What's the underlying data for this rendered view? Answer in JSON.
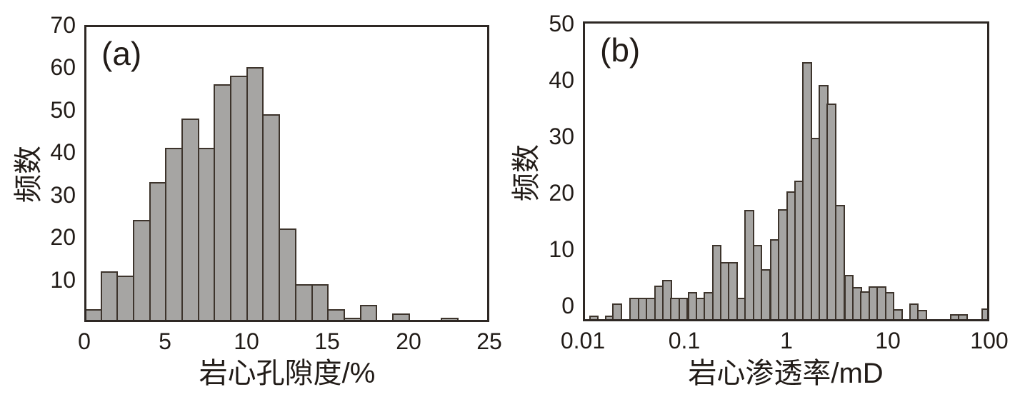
{
  "figure": {
    "background": "#ffffff"
  },
  "colors": {
    "bar_fill": "#a6a5a3",
    "bar_stroke": "#3d342c",
    "frame": "#2e2824",
    "text": "#221c18"
  },
  "chart_data": [
    {
      "id": "a",
      "type": "bar",
      "panel_label": "(a)",
      "ylabel": "频数",
      "xlabel": "岩心孔隙度/%",
      "xlim": [
        0,
        25
      ],
      "ylim": [
        0,
        70
      ],
      "xticks": [
        0,
        5,
        10,
        15,
        20,
        25
      ],
      "yticks": [
        10,
        20,
        30,
        40,
        50,
        60,
        70
      ],
      "grid": false,
      "bin_width": 1,
      "bin_left_edges": [
        0,
        1,
        2,
        3,
        4,
        5,
        6,
        7,
        8,
        9,
        10,
        11,
        12,
        13,
        14,
        15,
        16,
        17,
        18,
        19,
        20,
        21,
        22,
        23,
        24
      ],
      "values": [
        3,
        12,
        11,
        24,
        33,
        41,
        48,
        41,
        56,
        58,
        60,
        49,
        22,
        9,
        9,
        3,
        1,
        4,
        0,
        2,
        0,
        0,
        1,
        0,
        0
      ]
    },
    {
      "id": "b",
      "type": "bar",
      "panel_label": "(b)",
      "ylabel": "频数",
      "xlabel": "岩心渗透率/mD",
      "x_scale": "log10",
      "xlim_log": [
        -2,
        2
      ],
      "ylim": [
        -2.8,
        50.4
      ],
      "xtick_labels": [
        "0.01",
        "0.1",
        "1",
        "10",
        "100"
      ],
      "xtick_log_positions": [
        -2,
        -1,
        0,
        1,
        2
      ],
      "yticks": [
        0,
        10,
        20,
        30,
        40,
        50
      ],
      "grid": false,
      "bin_width_log": 0.0833,
      "baseline_note": "bars are drawn from the axis minimum (-2.8), slightly below the 0 tick",
      "bars": [
        {
          "log_x": -1.94,
          "top": -1.8
        },
        {
          "log_x": -1.78,
          "top": -1.8
        },
        {
          "log_x": -1.71,
          "top": 0.4
        },
        {
          "log_x": -1.54,
          "top": 1.4
        },
        {
          "log_x": -1.46,
          "top": 1.4
        },
        {
          "log_x": -1.38,
          "top": 1.4
        },
        {
          "log_x": -1.3,
          "top": 3.5
        },
        {
          "log_x": -1.22,
          "top": 4.6
        },
        {
          "log_x": -1.14,
          "top": 1.4
        },
        {
          "log_x": -1.06,
          "top": 1.4
        },
        {
          "log_x": -0.97,
          "top": 2.4
        },
        {
          "log_x": -0.89,
          "top": 1.4
        },
        {
          "log_x": -0.81,
          "top": 2.4
        },
        {
          "log_x": -0.73,
          "top": 10.8
        },
        {
          "log_x": -0.65,
          "top": 7.7
        },
        {
          "log_x": -0.57,
          "top": 7.7
        },
        {
          "log_x": -0.49,
          "top": 1.4
        },
        {
          "log_x": -0.41,
          "top": 17.0
        },
        {
          "log_x": -0.33,
          "top": 10.7
        },
        {
          "log_x": -0.25,
          "top": 6.5
        },
        {
          "log_x": -0.16,
          "top": 11.8
        },
        {
          "log_x": -0.08,
          "top": 17.1
        },
        {
          "log_x": 0.0,
          "top": 20.3
        },
        {
          "log_x": 0.08,
          "top": 22.2
        },
        {
          "log_x": 0.16,
          "top": 43.2
        },
        {
          "log_x": 0.24,
          "top": 29.7
        },
        {
          "log_x": 0.32,
          "top": 39.1
        },
        {
          "log_x": 0.4,
          "top": 35.8
        },
        {
          "log_x": 0.48,
          "top": 17.9
        },
        {
          "log_x": 0.57,
          "top": 5.5
        },
        {
          "log_x": 0.65,
          "top": 3.3
        },
        {
          "log_x": 0.73,
          "top": 2.5
        },
        {
          "log_x": 0.81,
          "top": 3.4
        },
        {
          "log_x": 0.89,
          "top": 3.4
        },
        {
          "log_x": 0.97,
          "top": 2.4
        },
        {
          "log_x": 1.05,
          "top": -0.6
        },
        {
          "log_x": 1.21,
          "top": 0.4
        },
        {
          "log_x": 1.29,
          "top": -0.8
        },
        {
          "log_x": 1.61,
          "top": -1.5
        },
        {
          "log_x": 1.69,
          "top": -1.5
        },
        {
          "log_x": 1.92,
          "top": -0.5
        }
      ]
    }
  ]
}
